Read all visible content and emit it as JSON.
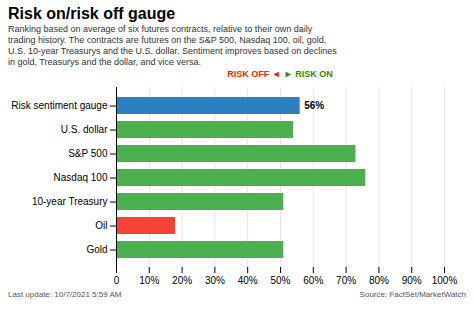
{
  "chart_data": {
    "type": "bar",
    "orientation": "horizontal",
    "title": "Risk on/risk off gauge",
    "subtitle": "Ranking based on average of six futures contracts, relative to their own daily\ntrading history. The contracts are futures on the S&P 500, Nasdaq 100, oil, gold,\nU.S. 10-year Treasurys and the U.S. dollar. Sentiment improves based on declines\nin gold, Treasurys and the dollar, and vice versa.",
    "categories": [
      "Risk sentiment gauge",
      "U.S. dollar",
      "S&P 500",
      "Nasdaq 100",
      "10-year Treasury",
      "Oil",
      "Gold"
    ],
    "values": [
      56,
      54,
      73,
      76,
      51,
      18,
      51
    ],
    "colors": [
      "#2e7fbf",
      "#4caf50",
      "#4caf50",
      "#4caf50",
      "#4caf50",
      "#f44336",
      "#4caf50"
    ],
    "xlim": [
      0,
      100
    ],
    "xticks": [
      0,
      {
        "value": 10,
        "label": "10%"
      },
      {
        "value": 20,
        "label": "20%"
      },
      {
        "value": 30,
        "label": "30%"
      },
      {
        "value": 40,
        "label": "40%"
      },
      {
        "value": 50,
        "label": "50%"
      },
      {
        "value": 60,
        "label": "60%"
      },
      {
        "value": 70,
        "label": "70%"
      },
      {
        "value": 80,
        "label": "80%"
      },
      {
        "value": 90,
        "label": "90%"
      },
      {
        "value": 100,
        "label": "100%"
      }
    ],
    "grid": true,
    "annotations": [
      {
        "category": "Risk sentiment gauge",
        "value": 56,
        "text": "56%"
      },
      {
        "text": "RISK OFF ◄",
        "color": "#e82a00"
      },
      {
        "text": "► RISK ON",
        "color": "#2e8b00"
      }
    ],
    "footer": [
      "Last update: 10/7/2021 5:59 AM",
      "Source: FactSet/MarketWatch"
    ]
  }
}
